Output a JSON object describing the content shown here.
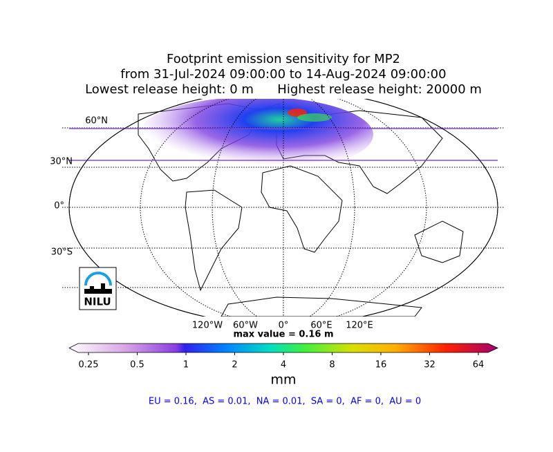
{
  "title": {
    "lines": [
      "Footprint emission sensitivity for MP2",
      "from 31-Jul-2024 09:00:00 to 14-Aug-2024 09:00:00",
      "Lowest release height: 0 m      Highest release height: 20000 m"
    ]
  },
  "map": {
    "lat_labels": [
      "60°N",
      "30°N",
      "0°",
      "30°S"
    ],
    "lon_labels": [
      "120°W",
      "60°W",
      "0°",
      "60°E",
      "120°E"
    ],
    "max_value": "max value = 0.16 m",
    "logo": "NILU"
  },
  "colorbar": {
    "ticks": [
      "0.25",
      "0.5",
      "1",
      "2",
      "4",
      "8",
      "16",
      "32",
      "64"
    ],
    "unit": "mm"
  },
  "regions": "EU = 0.16,  AS = 0.01,  NA = 0.01,  SA = 0,  AF = 0,  AU = 0"
}
